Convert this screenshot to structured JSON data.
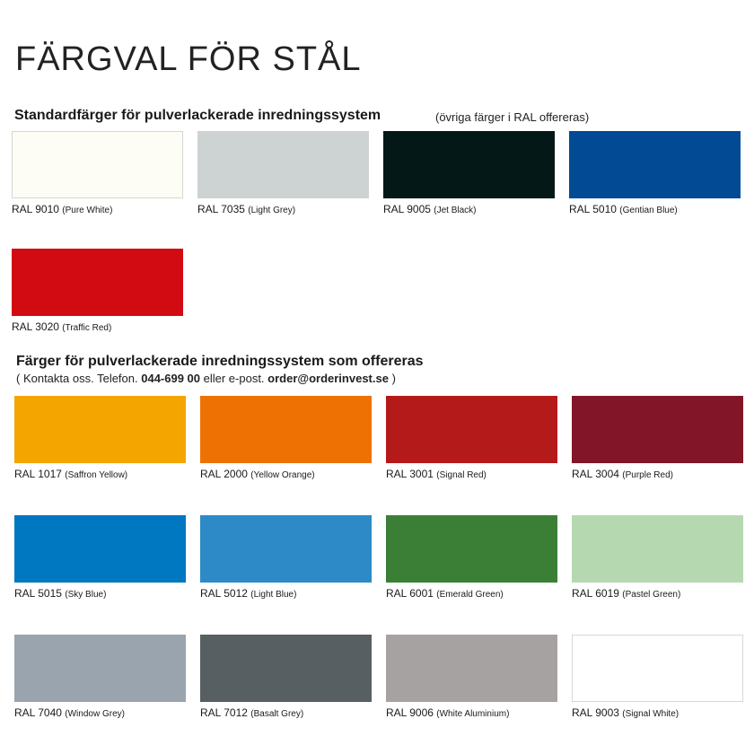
{
  "title": "FÄRGVAL FÖR STÅL",
  "standard": {
    "heading": "Standardfärger för pulverlackerade inredningssystem",
    "note": "(övriga färger i RAL offereras)",
    "colors": [
      {
        "code": "RAL 9010",
        "name": "(Pure White)",
        "hex": "#fdfcf5",
        "border": "#d6d6d6"
      },
      {
        "code": "RAL 7035",
        "name": "(Light Grey)",
        "hex": "#cdd3d2"
      },
      {
        "code": "RAL 9005",
        "name": "(Jet Black)",
        "hex": "#031817"
      },
      {
        "code": "RAL 5010",
        "name": "(Gentian Blue)",
        "hex": "#024a94"
      },
      {
        "code": "RAL 3020",
        "name": "(Traffic Red)",
        "hex": "#d20a12"
      }
    ]
  },
  "offered": {
    "heading": "Färger för pulverlackerade inredningssystem som offereras",
    "contact": {
      "pre": "( Kontakta oss. Telefon. ",
      "phone": "044-699 00",
      "mid": " eller e-post. ",
      "email": "order@orderinvest.se",
      "post": " )"
    },
    "colors": [
      {
        "code": "RAL 1017",
        "name": "(Saffron Yellow)",
        "hex": "#f5a500"
      },
      {
        "code": "RAL 2000",
        "name": "(Yellow Orange)",
        "hex": "#ee7203"
      },
      {
        "code": "RAL 3001",
        "name": "(Signal Red)",
        "hex": "#b51a1a"
      },
      {
        "code": "RAL 3004",
        "name": "(Purple Red)",
        "hex": "#821628"
      },
      {
        "code": "RAL 5015",
        "name": "(Sky Blue)",
        "hex": "#0077c1"
      },
      {
        "code": "RAL 5012",
        "name": "(Light Blue)",
        "hex": "#2d8ac6"
      },
      {
        "code": "RAL 6001",
        "name": "(Emerald Green)",
        "hex": "#3b7f37"
      },
      {
        "code": "RAL 6019",
        "name": "(Pastel Green)",
        "hex": "#b6d8b1"
      },
      {
        "code": "RAL 7040",
        "name": "(Window Grey)",
        "hex": "#9aa4ae"
      },
      {
        "code": "RAL 7012",
        "name": "(Basalt Grey)",
        "hex": "#585f63"
      },
      {
        "code": "RAL 9006",
        "name": "(White Aluminium)",
        "hex": "#a7a2a2"
      },
      {
        "code": "RAL 9003",
        "name": "(Signal White)",
        "hex": "#ffffff",
        "border": "#d6d6d6"
      }
    ]
  }
}
